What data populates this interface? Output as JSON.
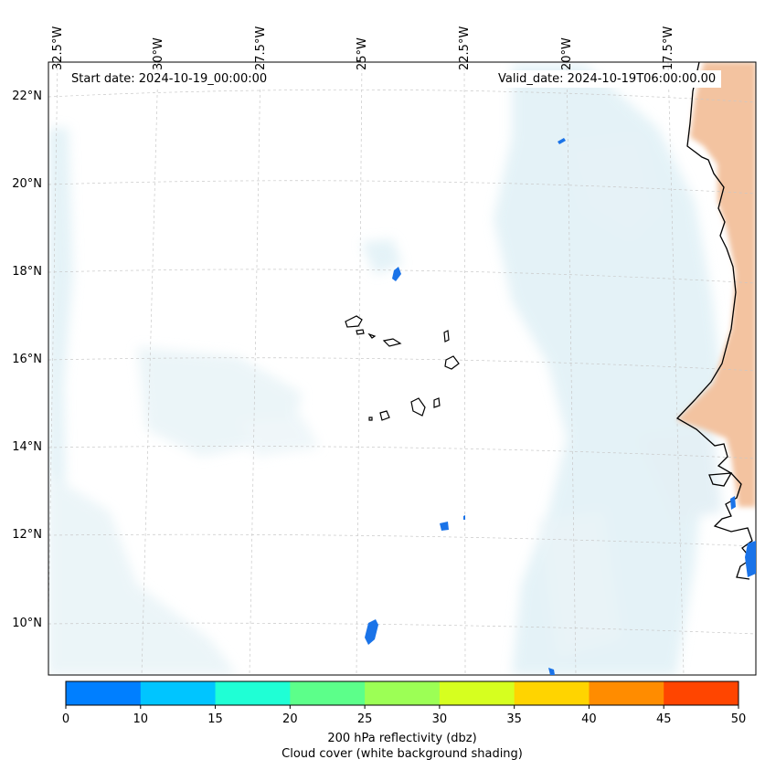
{
  "map": {
    "start_date_text": "Start date: 2024-10-19_00:00:00",
    "valid_date_text": "Valid_date: 2024-10-19T06:00:00.00",
    "lon_labels": [
      "32.5°W",
      "30°W",
      "27.5°W",
      "25°W",
      "22.5°W",
      "20°W",
      "17.5°W"
    ],
    "lat_labels": [
      "22°N",
      "20°N",
      "18°N",
      "16°N",
      "14°N",
      "12°N",
      "10°N"
    ],
    "extent": {
      "lon_min": -32.8,
      "lon_max": -15.8,
      "lat_min": 8.9,
      "lat_max": 22.8
    },
    "colors": {
      "land_shading": "#f2b98c",
      "cloud_shading": "#d6ecf3",
      "coastline": "#000000",
      "grid": "#cccccc"
    }
  },
  "colorbar": {
    "ticks": [
      "0",
      "10",
      "15",
      "20",
      "25",
      "30",
      "35",
      "40",
      "45",
      "50"
    ],
    "colors": [
      "#007fff",
      "#00c5ff",
      "#1fffd5",
      "#5cff8a",
      "#9cff55",
      "#d6ff1f",
      "#ffd400",
      "#ff8c00",
      "#ff4500"
    ],
    "label_line1": "200 hPa reflectivity (dbz)",
    "label_line2": "Cloud cover (white background shading)"
  }
}
